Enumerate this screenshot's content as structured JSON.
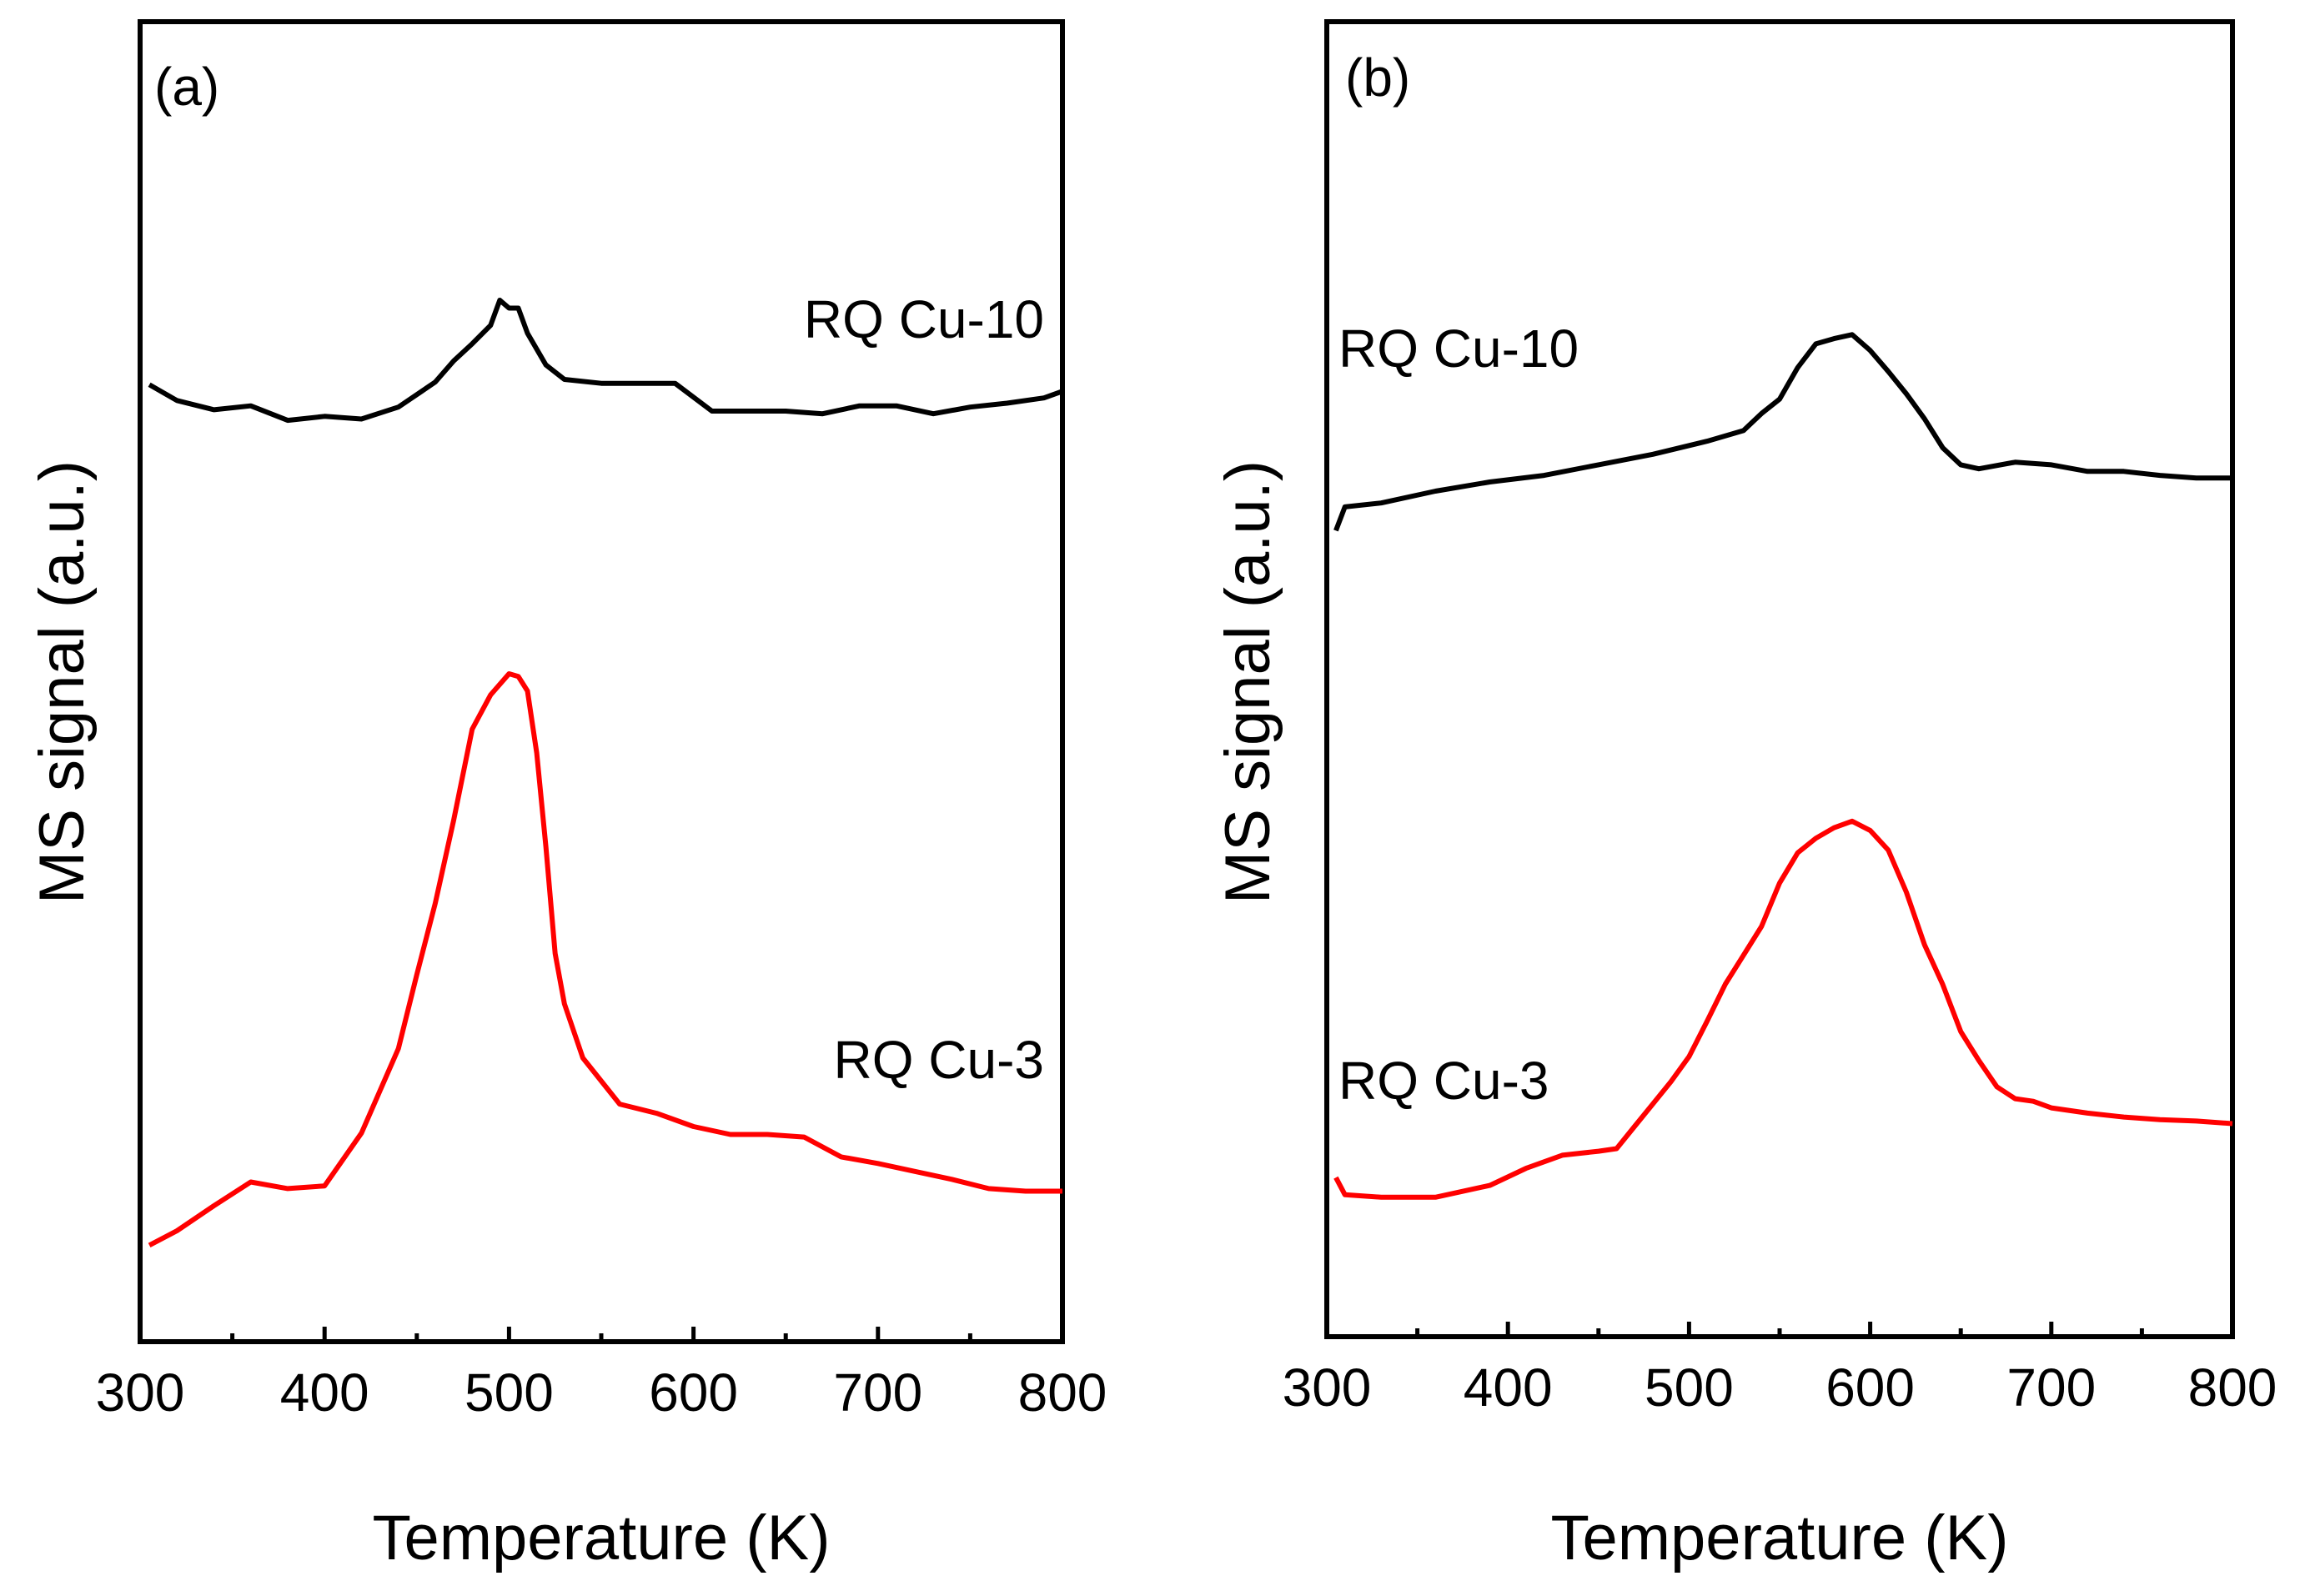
{
  "chart_data": [
    {
      "type": "line",
      "panel_label": "(a)",
      "xlabel": "Temperature (K)",
      "ylabel": "MS signal (a.u.)",
      "xlim": [
        300,
        800
      ],
      "xticks": [
        300,
        400,
        500,
        600,
        700,
        800
      ],
      "xtick_labels": [
        "300",
        "400",
        "500",
        "600",
        "700",
        "800"
      ],
      "ylim": [
        0,
        100
      ],
      "y_tick_labels_shown": false,
      "grid": false,
      "legend": "none (series labeled inline)",
      "series": [
        {
          "name": "RQ Cu-10",
          "color": "#000000",
          "x": [
            305,
            320,
            340,
            360,
            380,
            400,
            420,
            440,
            460,
            470,
            480,
            490,
            495,
            500,
            505,
            510,
            520,
            530,
            550,
            570,
            590,
            610,
            630,
            650,
            670,
            690,
            710,
            730,
            750,
            770,
            790,
            800
          ],
          "y": [
            72.5,
            71.3,
            70.6,
            70.9,
            69.8,
            70.1,
            69.9,
            70.8,
            72.7,
            74.3,
            75.6,
            77.0,
            78.9,
            78.3,
            78.3,
            76.4,
            74.0,
            72.9,
            72.6,
            72.6,
            72.6,
            70.5,
            70.5,
            70.5,
            70.3,
            70.9,
            70.9,
            70.3,
            70.8,
            71.1,
            71.5,
            72.0
          ]
        },
        {
          "name": "RQ Cu-3",
          "color": "#ff0000",
          "x": [
            305,
            320,
            340,
            360,
            380,
            400,
            420,
            440,
            450,
            460,
            470,
            480,
            490,
            500,
            505,
            510,
            515,
            520,
            525,
            530,
            540,
            560,
            580,
            600,
            620,
            640,
            660,
            680,
            700,
            720,
            740,
            760,
            780,
            800
          ],
          "y": [
            7.3,
            8.4,
            10.3,
            12.1,
            11.6,
            11.8,
            15.8,
            22.2,
            27.8,
            33.2,
            39.5,
            46.4,
            49.0,
            50.6,
            50.4,
            49.3,
            44.6,
            37.5,
            29.4,
            25.6,
            21.5,
            18.0,
            17.3,
            16.3,
            15.7,
            15.7,
            15.5,
            14.0,
            13.5,
            12.9,
            12.3,
            11.6,
            11.4,
            11.4
          ]
        }
      ],
      "annotations": [
        "RQ Cu-10",
        "RQ Cu-3"
      ]
    },
    {
      "type": "line",
      "panel_label": "(b)",
      "xlabel": "Temperature (K)",
      "ylabel": "MS signal (a.u.)",
      "xlim": [
        300,
        800
      ],
      "xticks": [
        300,
        400,
        500,
        600,
        700,
        800
      ],
      "xtick_labels": [
        "300",
        "400",
        "500",
        "600",
        "700",
        "800"
      ],
      "ylim": [
        0,
        100
      ],
      "y_tick_labels_shown": false,
      "grid": false,
      "legend": "none (series labeled inline)",
      "series": [
        {
          "name": "RQ Cu-10",
          "color": "#000000",
          "x": [
            305,
            310,
            330,
            360,
            390,
            420,
            450,
            480,
            510,
            530,
            540,
            550,
            560,
            570,
            580,
            590,
            600,
            610,
            620,
            630,
            640,
            650,
            660,
            680,
            700,
            720,
            740,
            760,
            780,
            800
          ],
          "y": [
            61.3,
            63.1,
            63.4,
            64.3,
            65.0,
            65.5,
            66.3,
            67.1,
            68.1,
            68.9,
            70.2,
            71.3,
            73.7,
            75.5,
            75.9,
            76.2,
            75.0,
            73.4,
            71.7,
            69.8,
            67.6,
            66.3,
            66.0,
            66.5,
            66.3,
            65.8,
            65.8,
            65.5,
            65.3,
            65.3
          ]
        },
        {
          "name": "RQ Cu-3",
          "color": "#ff0000",
          "x": [
            305,
            310,
            330,
            360,
            390,
            410,
            430,
            450,
            460,
            470,
            480,
            490,
            500,
            510,
            520,
            530,
            540,
            550,
            560,
            570,
            580,
            590,
            600,
            610,
            620,
            630,
            640,
            650,
            660,
            670,
            680,
            690,
            700,
            720,
            740,
            760,
            780,
            800
          ],
          "y": [
            12.1,
            10.8,
            10.6,
            10.6,
            11.5,
            12.8,
            13.8,
            14.1,
            14.3,
            16.0,
            17.7,
            19.4,
            21.3,
            24.0,
            26.8,
            29.0,
            31.2,
            34.5,
            36.8,
            37.9,
            38.7,
            39.2,
            38.5,
            37.0,
            33.8,
            29.8,
            26.8,
            23.2,
            21.0,
            19.0,
            18.1,
            17.9,
            17.4,
            17.0,
            16.7,
            16.5,
            16.4,
            16.2
          ]
        }
      ],
      "annotations": [
        "RQ Cu-10",
        "RQ Cu-3"
      ]
    }
  ]
}
